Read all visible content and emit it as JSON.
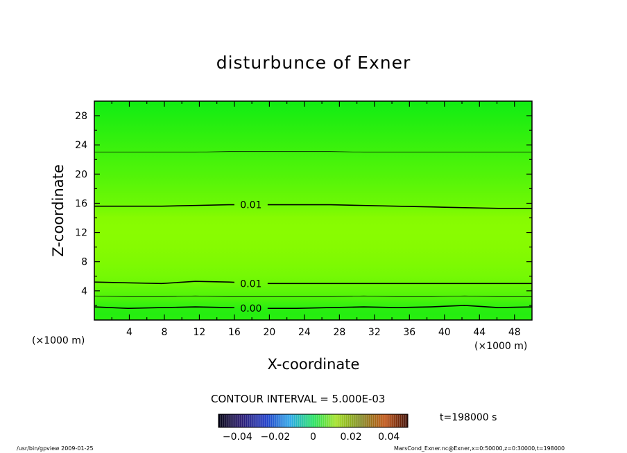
{
  "chart_data": {
    "type": "heatmap",
    "title": "disturbunce of Exner",
    "xlabel": "X-coordinate",
    "ylabel": "Z-coordinate",
    "x_unit": "(×1000 m)",
    "y_unit": "(×1000 m)",
    "xlim": [
      0,
      50
    ],
    "ylim": [
      0,
      30
    ],
    "x_ticks": [
      4,
      8,
      12,
      16,
      20,
      24,
      28,
      32,
      36,
      40,
      44,
      48
    ],
    "y_ticks": [
      4,
      8,
      12,
      16,
      20,
      24,
      28
    ],
    "contour_interval_label": "CONTOUR INTERVAL = 5.000E-03",
    "time_label": "t=198000 s",
    "colorbar": {
      "range": [
        -0.05,
        0.05
      ],
      "tick_values": [
        -0.04,
        -0.02,
        0,
        0.02,
        0.04
      ],
      "tick_labels": [
        "−0.04",
        "−0.02",
        "0",
        "0.02",
        "0.04"
      ]
    },
    "field_profile": {
      "z": [
        0,
        0.8,
        1.6,
        2.4,
        3.2,
        4.2,
        5.0,
        6.0,
        8.0,
        10.0,
        12.0,
        14.0,
        16.0,
        18.0,
        20.0,
        22.0,
        23.0,
        24.0,
        26.0,
        28.0,
        30.0
      ],
      "value": [
        0.0,
        -0.001,
        0.0,
        0.003,
        0.006,
        0.008,
        0.01,
        0.0115,
        0.013,
        0.014,
        0.0145,
        0.014,
        0.01,
        0.008,
        0.006,
        0.004,
        0.003,
        0.002,
        0.0,
        -0.002,
        -0.004
      ]
    },
    "contours": [
      {
        "label": "0.00",
        "z": [
          1.8,
          1.6,
          1.7,
          1.8,
          1.7,
          1.6,
          1.6,
          1.7,
          1.8,
          1.7,
          1.8,
          2.0,
          1.7,
          1.8
        ]
      },
      {
        "label": "",
        "z": [
          3.3,
          3.2,
          3.2,
          3.3,
          3.2,
          3.2,
          3.2,
          3.2,
          3.3,
          3.2,
          3.2,
          3.3,
          3.2,
          3.2
        ]
      },
      {
        "label": "0.01",
        "z": [
          5.2,
          5.1,
          5.0,
          5.3,
          5.2,
          5.0,
          5.0,
          5.0,
          5.0,
          5.0,
          5.0,
          5.0,
          5.0,
          5.0
        ]
      },
      {
        "label": "0.01",
        "z": [
          15.6,
          15.6,
          15.6,
          15.7,
          15.8,
          15.8,
          15.8,
          15.8,
          15.7,
          15.6,
          15.5,
          15.4,
          15.3,
          15.3
        ]
      },
      {
        "label": "",
        "z": [
          23.0,
          23.0,
          23.0,
          23.0,
          23.1,
          23.1,
          23.1,
          23.1,
          23.0,
          23.0,
          23.0,
          23.0,
          23.0,
          23.0
        ]
      }
    ]
  },
  "footer": {
    "left": "/usr/bin/gpview   2009-01-25",
    "right": "MarsCond_Exner.nc@Exner,x=0:50000,z=0:30000,t=198000"
  }
}
